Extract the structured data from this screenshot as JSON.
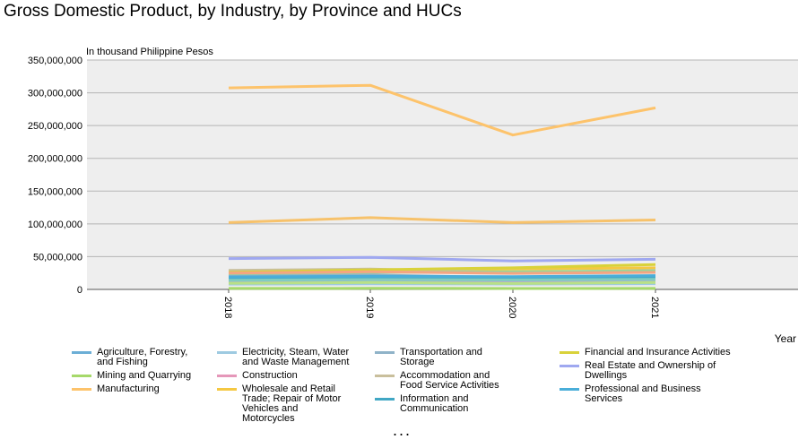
{
  "title": "Gross Domestic Product, by Industry, by Province and HUCs",
  "overflow_indicator": "...",
  "chart_data": {
    "type": "line",
    "title": "Gross Domestic Product, by Industry, by Province and HUCs",
    "ylabel": "In thousand Philippine Pesos",
    "xlabel": "Year",
    "x": [
      "2018",
      "2019",
      "2020",
      "2021"
    ],
    "ylim": [
      0,
      350000000
    ],
    "yticks": [
      0,
      50000000,
      100000000,
      150000000,
      200000000,
      250000000,
      300000000,
      350000000
    ],
    "ytick_labels": [
      "0",
      "50,000,000",
      "100,000,000",
      "150,000,000",
      "200,000,000",
      "250,000,000",
      "300,000,000",
      "350,000,000"
    ],
    "grid": true,
    "plot_background": "#eeeeee",
    "legend_position": "bottom",
    "series": [
      {
        "name": "Agriculture, Forestry, and Fishing",
        "color": "#6baed6",
        "values": [
          17000000,
          18000000,
          18500000,
          19000000
        ]
      },
      {
        "name": "Mining and Quarrying",
        "color": "#a6d96a",
        "values": [
          1500000,
          1600000,
          1400000,
          1500000
        ]
      },
      {
        "name": "Manufacturing",
        "color": "#fdc36b",
        "values": [
          307500000,
          311500000,
          235500000,
          277000000
        ]
      },
      {
        "name": "Electricity, Steam, Water and Waste Management",
        "color": "#9ecae1",
        "values": [
          8000000,
          8500000,
          8200000,
          8800000
        ]
      },
      {
        "name": "Construction",
        "color": "#e597b9",
        "values": [
          12000000,
          13000000,
          10000000,
          11500000
        ]
      },
      {
        "name": "Wholesale and Retail Trade; Repair of Motor Vehicles and Motorcycles",
        "color": "#f5c842",
        "values": [
          27000000,
          29000000,
          31000000,
          33000000
        ]
      },
      {
        "name": "Transportation and Storage",
        "color": "#8fb3c8",
        "values": [
          21000000,
          22000000,
          18000000,
          19500000
        ]
      },
      {
        "name": "Accommodation and Food Service Activities",
        "color": "#c9bf9c",
        "values": [
          29000000,
          31000000,
          26000000,
          29000000
        ]
      },
      {
        "name": "Information and Communication",
        "color": "#41a7c4",
        "values": [
          16000000,
          17000000,
          16500000,
          17500000
        ]
      },
      {
        "name": "Financial and Insurance Activities",
        "color": "#d9d23a",
        "values": [
          26000000,
          30000000,
          33000000,
          38000000
        ]
      },
      {
        "name": "Real Estate and Ownership of Dwellings",
        "color": "#9fa8f0",
        "values": [
          47000000,
          49000000,
          43500000,
          46000000
        ]
      },
      {
        "name": "Professional and Business Services",
        "color": "#4aaed9",
        "values": [
          19000000,
          20000000,
          19500000,
          21000000
        ]
      },
      {
        "name": "",
        "color": "#f7c26b",
        "values": [
          102000000,
          109500000,
          102000000,
          106000000
        ]
      },
      {
        "name": "",
        "color": "#99d59a",
        "values": [
          24000000,
          26000000,
          27000000,
          28500000
        ]
      },
      {
        "name": "",
        "color": "#b3a5d6",
        "values": [
          12500000,
          14000000,
          12000000,
          13500000
        ]
      },
      {
        "name": "",
        "color": "#f4a582",
        "values": [
          25000000,
          27000000,
          24500000,
          26000000
        ]
      },
      {
        "name": "",
        "color": "#b8e186",
        "values": [
          9500000,
          10500000,
          9000000,
          10500000
        ]
      },
      {
        "name": "",
        "color": "#80cdc1",
        "values": [
          14000000,
          15000000,
          14500000,
          15500000
        ]
      }
    ]
  }
}
